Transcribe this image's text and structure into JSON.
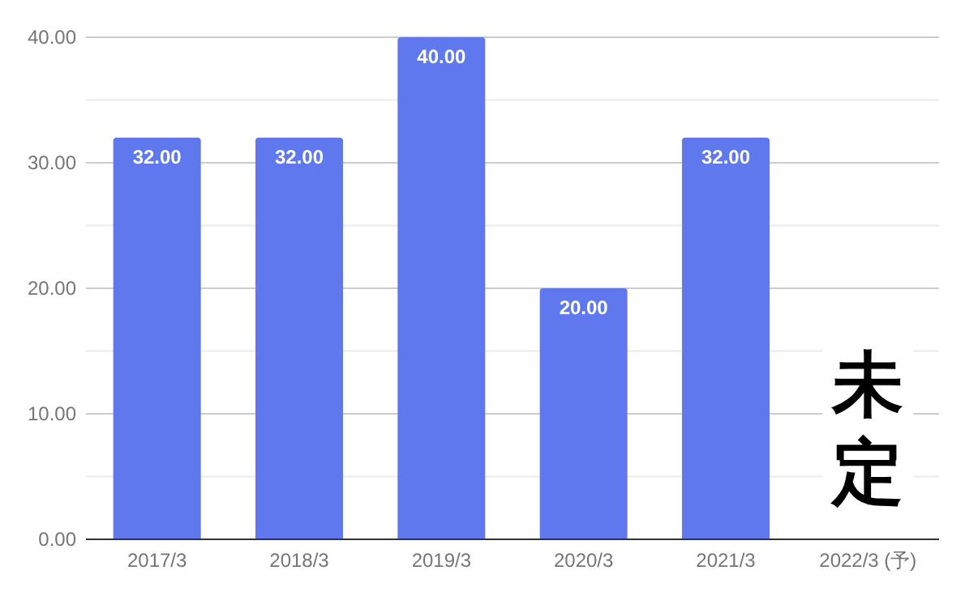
{
  "chart_data": {
    "type": "bar",
    "categories": [
      "2017/3",
      "2018/3",
      "2019/3",
      "2020/3",
      "2021/3",
      "2022/3 (予)"
    ],
    "values": [
      32,
      32,
      40,
      20,
      32,
      null
    ],
    "value_labels": [
      "32.00",
      "32.00",
      "40.00",
      "20.00",
      "32.00",
      null
    ],
    "color": "#6078ee",
    "ylim": [
      0,
      40
    ],
    "yticks": [
      {
        "value": 0,
        "label": "0.00"
      },
      {
        "value": 5,
        "label": null
      },
      {
        "value": 10,
        "label": "10.00"
      },
      {
        "value": 15,
        "label": null
      },
      {
        "value": 20,
        "label": "20.00"
      },
      {
        "value": 25,
        "label": null
      },
      {
        "value": 30,
        "label": "30.00"
      },
      {
        "value": 35,
        "label": null
      },
      {
        "value": 40,
        "label": "40.00"
      }
    ],
    "grid": "y",
    "annotations": [
      "未定"
    ]
  }
}
